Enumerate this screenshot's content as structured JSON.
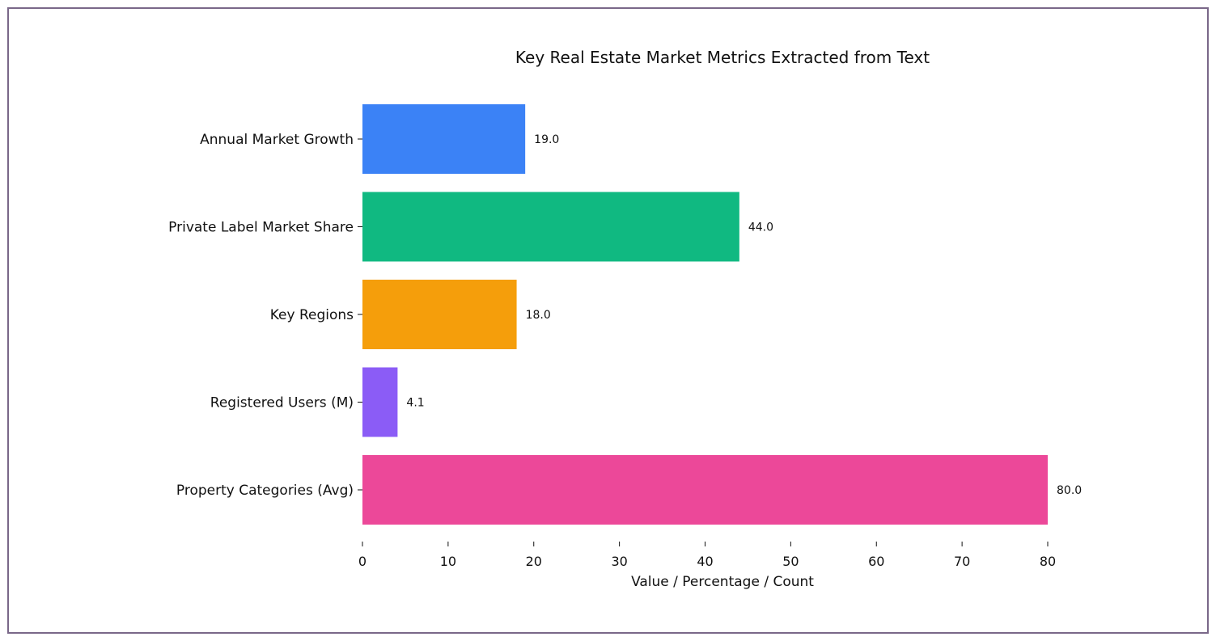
{
  "chart_data": {
    "type": "bar",
    "orientation": "horizontal",
    "title": "Key Real Estate Market Metrics Extracted from Text",
    "xlabel": "Value / Percentage / Count",
    "ylabel": "",
    "xlim": [
      0,
      80
    ],
    "xticks": [
      0,
      10,
      20,
      30,
      40,
      50,
      60,
      70,
      80
    ],
    "grid": false,
    "legend": "none",
    "categories": [
      "Annual Market Growth",
      "Private Label Market Share",
      "Key Regions",
      "Registered Users (M)",
      "Property Categories (Avg)"
    ],
    "values": [
      19.0,
      44.0,
      18.0,
      4.1,
      80.0
    ],
    "value_labels": [
      "19.0",
      "44.0",
      "18.0",
      "4.1",
      "80.0"
    ],
    "colors": [
      "#3b82f6",
      "#10b981",
      "#f59e0b",
      "#8b5cf6",
      "#ec4899"
    ]
  }
}
